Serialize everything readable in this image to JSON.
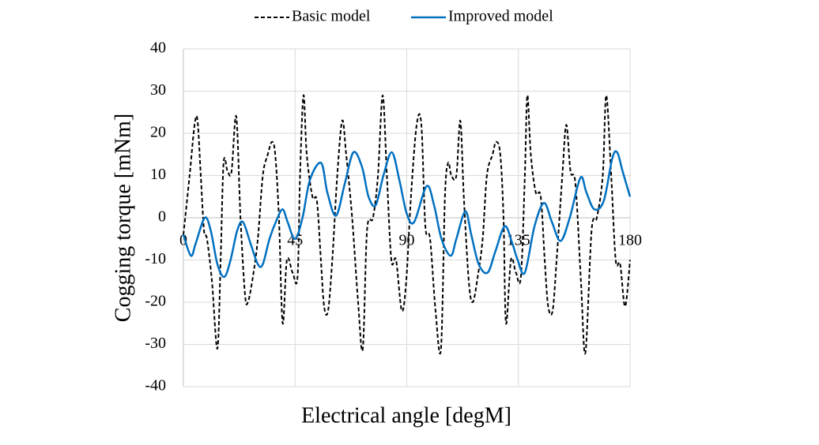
{
  "chart_data": {
    "type": "line",
    "x_label": "Electrical angle [degM]",
    "y_label": "Cogging torque [mNm]",
    "xlim": [
      0,
      180
    ],
    "xticks": [
      0,
      45,
      90,
      135,
      180
    ],
    "ylim": [
      -40,
      40
    ],
    "yticks": [
      -40,
      -30,
      -20,
      -10,
      0,
      10,
      20,
      30,
      40
    ],
    "grid": true,
    "legend": "top",
    "series": [
      {
        "name": "Basic model",
        "color": "#000000",
        "dash": true,
        "x": [
          0,
          2.5,
          4.5,
          5.7,
          7,
          8.3,
          9.5,
          11.5,
          13.7,
          15,
          16.2,
          17.8,
          19.4,
          21.3,
          23,
          24.8,
          26,
          28,
          30,
          32,
          34,
          35.7,
          37,
          38.5,
          40,
          41.7,
          44,
          46,
          47,
          48.4,
          49.7,
          52,
          53.8,
          55.4,
          56.7,
          58.3,
          60,
          62,
          64,
          65.6,
          68,
          70.4,
          72.3,
          74,
          76.4,
          78.4,
          80.3,
          82,
          83.8,
          85.7,
          88,
          89.8,
          91.7,
          94,
          95.9,
          97.5,
          99.4,
          101.6,
          103.8,
          105.4,
          106.7,
          108,
          110,
          111.6,
          113,
          115,
          116.6,
          118.6,
          120.6,
          122.3,
          124.6,
          126,
          127.7,
          129,
          130,
          132,
          134,
          136,
          137.6,
          138.6,
          140,
          142,
          144,
          145.6,
          147,
          148.8,
          150.4,
          152.7,
          154.3,
          156,
          158,
          160.2,
          162,
          164.5,
          166.6,
          169,
          170.4,
          172.4,
          174.2,
          176,
          178,
          180
        ],
        "values": [
          -4,
          10,
          22,
          23,
          10,
          -3,
          -5,
          -15,
          -31,
          -10,
          13,
          11,
          11,
          24,
          0,
          -18,
          -20,
          -14,
          -5,
          10,
          15,
          18,
          15,
          0,
          -25,
          -10,
          -13,
          -14,
          10,
          29,
          15,
          5,
          4,
          -10,
          -21,
          -22,
          -10,
          10,
          23,
          15,
          0,
          -20,
          -31,
          -3,
          0,
          10,
          29,
          10,
          -10,
          -10,
          -22,
          -15,
          5,
          22,
          22,
          -2,
          -5,
          -22,
          -31,
          5,
          13,
          10,
          10,
          23,
          5,
          -15,
          -20,
          -14,
          -5,
          10,
          15,
          18,
          15,
          0,
          -25,
          -10,
          -13,
          -14,
          10,
          29,
          15,
          6,
          5,
          -10,
          -21,
          -22,
          -10,
          10,
          22,
          11,
          8,
          -15,
          -32,
          -3,
          0,
          10,
          29,
          10,
          -10,
          -11,
          -21,
          -10
        ]
      },
      {
        "name": "Improved model",
        "color": "#0070c0",
        "dash": false,
        "x": [
          0,
          3,
          5,
          8.6,
          11,
          13.7,
          16.5,
          19,
          21.7,
          24,
          27,
          30,
          32,
          34.7,
          37.6,
          40,
          42,
          45,
          48,
          51,
          55.5,
          58,
          61.5,
          65,
          68.5,
          72,
          74.6,
          77.5,
          80.6,
          84,
          87,
          90,
          93,
          98,
          101,
          104,
          107.7,
          110,
          113.6,
          116,
          119,
          122.6,
          125.7,
          129.5,
          132.5,
          134.7,
          137.6,
          141.5,
          145.3,
          148.5,
          152,
          155.7,
          160,
          162.4,
          165.6,
          169.4,
          172.8,
          174.8,
          177,
          180
        ],
        "values": [
          -4,
          -9,
          -6,
          0,
          -3,
          -11,
          -14,
          -10,
          -3,
          -1,
          -6,
          -11,
          -11,
          -5,
          -0.5,
          2,
          -1,
          -5,
          0,
          9,
          13,
          6,
          0.5,
          8,
          15.5,
          12,
          5,
          3,
          10,
          15.5,
          9,
          1,
          -1,
          7.5,
          3,
          -5,
          -9,
          -5,
          1.5,
          -4,
          -11,
          -13,
          -8,
          -2,
          -6,
          -10,
          -13,
          -2,
          3.5,
          -1,
          -5.5,
          0,
          9.5,
          6,
          2,
          4,
          14,
          15.5,
          11,
          5
        ]
      }
    ]
  }
}
